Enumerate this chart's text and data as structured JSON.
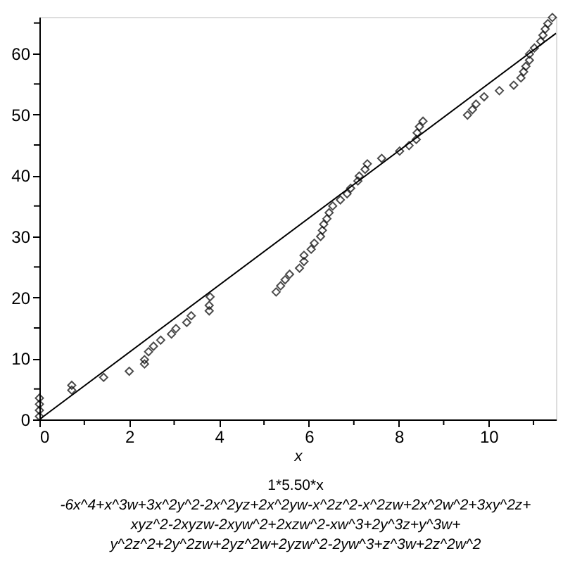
{
  "chart_data": {
    "type": "scatter",
    "xlabel": "x",
    "xlim": [
      0,
      11.5
    ],
    "ylim": [
      0,
      66
    ],
    "xticks": [
      0,
      {
        "value": 1,
        "label": null
      },
      2,
      {
        "value": 3,
        "label": null
      },
      4,
      {
        "value": 5,
        "label": null
      },
      6,
      {
        "value": 7,
        "label": null
      },
      8,
      {
        "value": 9,
        "label": null
      },
      10,
      {
        "value": 11,
        "label": null
      }
    ],
    "yticks": [
      0,
      {
        "value": 5,
        "label": null
      },
      10,
      {
        "value": 15,
        "label": null
      },
      20,
      {
        "value": 25,
        "label": null
      },
      30,
      {
        "value": 35,
        "label": null
      },
      40,
      {
        "value": 45,
        "label": null
      },
      50,
      {
        "value": 55,
        "label": null
      },
      60,
      {
        "value": 65,
        "label": null
      }
    ],
    "grid": false,
    "annotations": [
      "1*5.50*x",
      "-6x^4+x^3w+3x^2y^2-2x^2yz+2x^2yw-x^2z^2-x^2zw+2x^2w^2+3xy^2z+",
      "xyz^2-2xyzw-2xyw^2+2xzw^2-xw^3+2y^3z+y^3w+",
      "y^2z^2+2y^2zw+2yz^2w+2yzw^2-2yw^3+z^3w+2z^2w^2"
    ],
    "series": [
      {
        "marker": "diamond",
        "color": "#000000",
        "x": [
          0,
          0,
          0,
          0,
          0.72,
          0.72,
          1.43,
          2.0,
          2.34,
          2.34,
          2.43,
          2.54,
          2.7,
          2.94,
          3.04,
          3.28,
          3.38,
          3.78,
          3.78,
          3.8,
          5.27,
          5.37,
          5.47,
          5.57,
          5.79,
          5.89,
          5.89,
          6.05,
          6.12,
          6.26,
          6.3,
          6.33,
          6.4,
          6.45,
          6.53,
          6.7,
          6.85,
          6.93,
          7.09,
          7.12,
          7.25,
          7.3,
          7.62,
          8.02,
          8.23,
          8.39,
          8.41,
          8.46,
          8.54,
          9.53,
          9.64,
          9.72,
          9.9,
          10.24,
          10.56,
          10.72,
          10.78,
          10.83,
          10.91,
          10.91,
          11.02,
          11.16,
          11.21,
          11.26,
          11.32,
          11.42
        ],
        "values": [
          0.5,
          1.5,
          2.5,
          3.5,
          4.8,
          5.6,
          6.9,
          7.9,
          9.1,
          9.8,
          11.1,
          12.0,
          13.0,
          14.0,
          14.9,
          15.9,
          17.0,
          17.8,
          18.7,
          20.1,
          20.9,
          21.9,
          22.9,
          23.8,
          24.8,
          25.9,
          26.9,
          27.9,
          28.9,
          30.0,
          31.0,
          32.0,
          32.9,
          33.9,
          35.0,
          36.0,
          37.0,
          37.9,
          39.1,
          39.9,
          41.0,
          41.9,
          42.8,
          44.0,
          44.9,
          45.9,
          47.0,
          48.0,
          48.9,
          49.9,
          50.8,
          51.7,
          52.9,
          53.9,
          54.8,
          56.0,
          57.0,
          57.9,
          58.9,
          59.9,
          60.9,
          62.0,
          63.0,
          64.0,
          64.9,
          65.9
        ]
      },
      {
        "type": "line",
        "line_style": "solid",
        "color": "#000000",
        "x": [
          0,
          11.5
        ],
        "values": [
          0,
          63.3
        ]
      }
    ]
  }
}
